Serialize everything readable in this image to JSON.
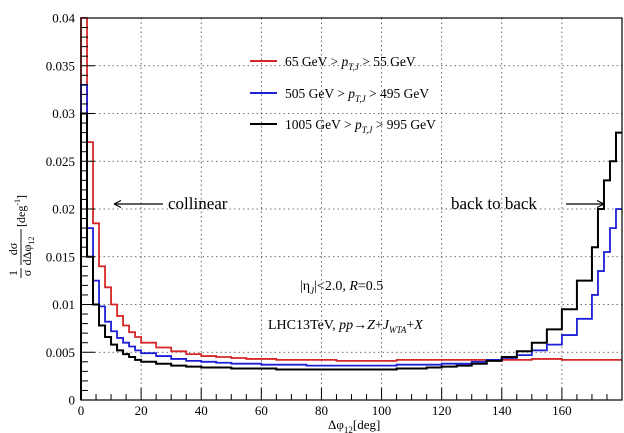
{
  "chart_data": {
    "type": "line",
    "style": "step-histogram",
    "xlabel": "Δφ",
    "xlabel_sub": "12",
    "xlabel_unit": "[deg]",
    "ylabel": {
      "frac_num": "1",
      "frac_den": "σ",
      "dfrac_num": "dσ",
      "dfrac_den": "dΔφ",
      "dfrac_den_sub": "12",
      "unit": "[deg",
      "unit_sup": "-1",
      "unit_close": "]"
    },
    "xlim": [
      0,
      180
    ],
    "ylim": [
      0,
      0.04
    ],
    "x_ticks": [
      "0",
      "20",
      "40",
      "60",
      "80",
      "100",
      "120",
      "140",
      "160"
    ],
    "x_tick_values": [
      0,
      20,
      40,
      60,
      80,
      100,
      120,
      140,
      160
    ],
    "y_ticks": [
      "0",
      "0.005",
      "0.01",
      "0.015",
      "0.02",
      "0.025",
      "0.03",
      "0.035",
      "0.04"
    ],
    "y_tick_values": [
      0,
      0.005,
      0.01,
      0.015,
      0.02,
      0.025,
      0.03,
      0.035,
      0.04
    ],
    "grid": true,
    "legend_position": "top-right",
    "bin_edges": [
      0,
      2,
      4,
      6,
      8,
      10,
      12,
      14,
      16,
      18,
      20,
      25,
      30,
      35,
      40,
      45,
      50,
      55,
      60,
      65,
      70,
      75,
      80,
      85,
      90,
      95,
      100,
      105,
      110,
      115,
      120,
      125,
      130,
      135,
      140,
      145,
      150,
      155,
      160,
      165,
      170,
      172,
      174,
      176,
      178,
      180
    ],
    "series": [
      {
        "name_prefix": "65 GeV > ",
        "name_p": "p",
        "name_sub": "T,J",
        "name_suffix": " > 55 GeV",
        "color": "#d62728",
        "values": [
          0.04,
          0.027,
          0.0185,
          0.014,
          0.0118,
          0.01,
          0.0088,
          0.0078,
          0.0071,
          0.0066,
          0.006,
          0.0055,
          0.0051,
          0.0048,
          0.0046,
          0.0045,
          0.0044,
          0.0043,
          0.0043,
          0.0042,
          0.0042,
          0.0042,
          0.0042,
          0.0041,
          0.0041,
          0.0041,
          0.0041,
          0.0042,
          0.0042,
          0.0042,
          0.0042,
          0.0042,
          0.0042,
          0.0042,
          0.0042,
          0.0042,
          0.0043,
          0.0043,
          0.0042,
          0.0042,
          0.0042,
          0.0042,
          0.0042,
          0.0042,
          0.0042
        ]
      },
      {
        "name_prefix": "505 GeV > ",
        "name_p": "p",
        "name_sub": "T,J",
        "name_suffix": " > 495 GeV",
        "color": "#1f1fd6",
        "values": [
          0.033,
          0.018,
          0.0125,
          0.0098,
          0.0082,
          0.0072,
          0.0065,
          0.006,
          0.0056,
          0.0052,
          0.0049,
          0.0046,
          0.0043,
          0.0041,
          0.004,
          0.0039,
          0.0038,
          0.0038,
          0.0037,
          0.0037,
          0.0037,
          0.0036,
          0.0036,
          0.0036,
          0.0036,
          0.0036,
          0.0036,
          0.0037,
          0.0037,
          0.0037,
          0.0038,
          0.0038,
          0.004,
          0.0042,
          0.0044,
          0.0047,
          0.0052,
          0.0058,
          0.0068,
          0.0085,
          0.011,
          0.0135,
          0.0155,
          0.018,
          0.02
        ]
      },
      {
        "name_prefix": "1005 GeV > ",
        "name_p": "p",
        "name_sub": "T,J",
        "name_suffix": " > 995 GeV",
        "color": "#000000",
        "values": [
          0.03,
          0.015,
          0.01,
          0.0078,
          0.0066,
          0.0058,
          0.0052,
          0.0048,
          0.0045,
          0.0042,
          0.004,
          0.0038,
          0.0036,
          0.0035,
          0.0034,
          0.0034,
          0.0033,
          0.0033,
          0.0033,
          0.0032,
          0.0032,
          0.0032,
          0.0032,
          0.0032,
          0.0032,
          0.0032,
          0.0032,
          0.0033,
          0.0033,
          0.0034,
          0.0035,
          0.0036,
          0.0038,
          0.0041,
          0.0045,
          0.0051,
          0.006,
          0.0074,
          0.0095,
          0.0125,
          0.016,
          0.02,
          0.023,
          0.025,
          0.028
        ]
      }
    ],
    "annotations": {
      "collinear": "collinear",
      "back_to_back": "back to back",
      "eta_line": {
        "pre": "|η",
        "sub": "J",
        "mid": "|<2.0, ",
        "R": "R",
        "post": "=0.5"
      },
      "process_line": {
        "pre": "LHC13TeV, ",
        "pp": "pp",
        "arrow": "→",
        "Z": "Z",
        "plus": "+",
        "J": "J",
        "J_sub": "WTA",
        "plus2": "+",
        "X": "X"
      }
    }
  }
}
